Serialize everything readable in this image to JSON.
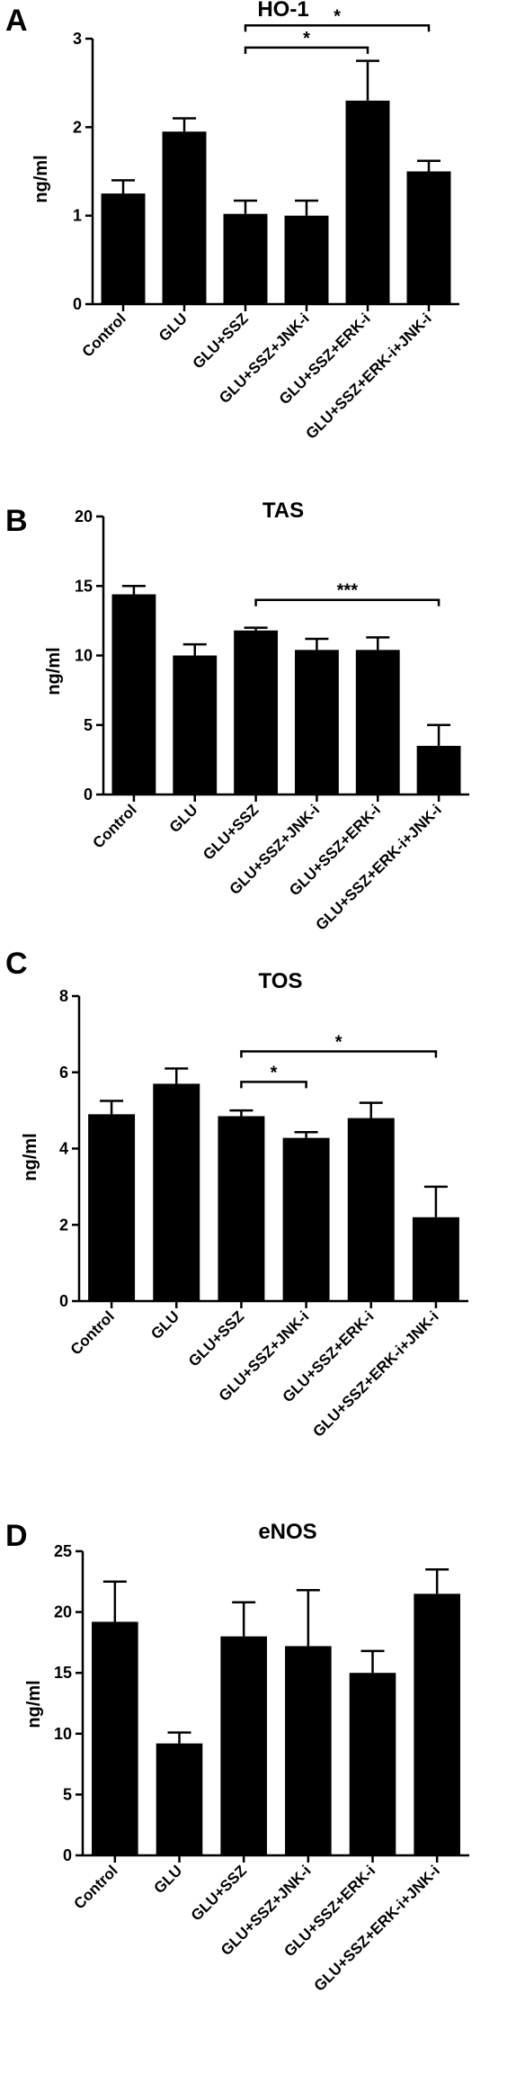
{
  "chart_data": [
    {
      "panel": "A",
      "type": "bar",
      "title": "HO-1",
      "ylabel": "ng/ml",
      "xlabel": "",
      "ylim": [
        0,
        3
      ],
      "yticks": [
        0,
        1,
        2,
        3
      ],
      "categories": [
        "Control",
        "GLU",
        "GLU+SSZ",
        "GLU+SSZ+JNK-i",
        "GLU+SSZ+ERK-i",
        "GLU+SSZ+ERK-i+JNK-i"
      ],
      "values": [
        1.25,
        1.95,
        1.02,
        1.0,
        2.3,
        1.5
      ],
      "errors": [
        0.15,
        0.15,
        0.15,
        0.17,
        0.45,
        0.12
      ],
      "significance": [
        {
          "from": 2,
          "to": 4,
          "label": "*",
          "y": 2.9
        },
        {
          "from": 2,
          "to": 5,
          "label": "*",
          "y": 3.15
        }
      ]
    },
    {
      "panel": "B",
      "type": "bar",
      "title": "TAS",
      "ylabel": "ng/ml",
      "xlabel": "",
      "ylim": [
        0,
        20
      ],
      "yticks": [
        0,
        5,
        10,
        15,
        20
      ],
      "categories": [
        "Control",
        "GLU",
        "GLU+SSZ",
        "GLU+SSZ+JNK-i",
        "GLU+SSZ+ERK-i",
        "GLU+SSZ+ERK-i+JNK-i"
      ],
      "values": [
        14.4,
        10.0,
        11.8,
        10.4,
        10.4,
        3.5
      ],
      "errors": [
        0.6,
        0.8,
        0.2,
        0.8,
        0.9,
        1.5
      ],
      "significance": [
        {
          "from": 2,
          "to": 5,
          "label": "***",
          "y": 14.0
        }
      ]
    },
    {
      "panel": "C",
      "type": "bar",
      "title": "TOS",
      "ylabel": "ng/ml",
      "xlabel": "",
      "ylim": [
        0,
        8
      ],
      "yticks": [
        0,
        2,
        4,
        6,
        8
      ],
      "categories": [
        "Control",
        "GLU",
        "GLU+SSZ",
        "GLU+SSZ+JNK-i",
        "GLU+SSZ+ERK-i",
        "GLU+SSZ+ERK-i+JNK-i"
      ],
      "values": [
        4.9,
        5.7,
        4.85,
        4.28,
        4.8,
        2.2
      ],
      "errors": [
        0.35,
        0.4,
        0.15,
        0.15,
        0.4,
        0.8
      ],
      "significance": [
        {
          "from": 2,
          "to": 3,
          "label": "*",
          "y": 5.75
        },
        {
          "from": 2,
          "to": 5,
          "label": "*",
          "y": 6.55
        }
      ]
    },
    {
      "panel": "D",
      "type": "bar",
      "title": "eNOS",
      "ylabel": "ng/ml",
      "xlabel": "",
      "ylim": [
        0,
        25
      ],
      "yticks": [
        0,
        5,
        10,
        15,
        20,
        25
      ],
      "categories": [
        "Control",
        "GLU",
        "GLU+SSZ",
        "GLU+SSZ+JNK-i",
        "GLU+SSZ+ERK-i",
        "GLU+SSZ+ERK-i+JNK-i"
      ],
      "values": [
        19.2,
        9.2,
        18.0,
        17.2,
        15.0,
        21.5
      ],
      "errors": [
        3.3,
        0.9,
        2.8,
        4.6,
        1.8,
        2.0
      ],
      "significance": []
    }
  ]
}
